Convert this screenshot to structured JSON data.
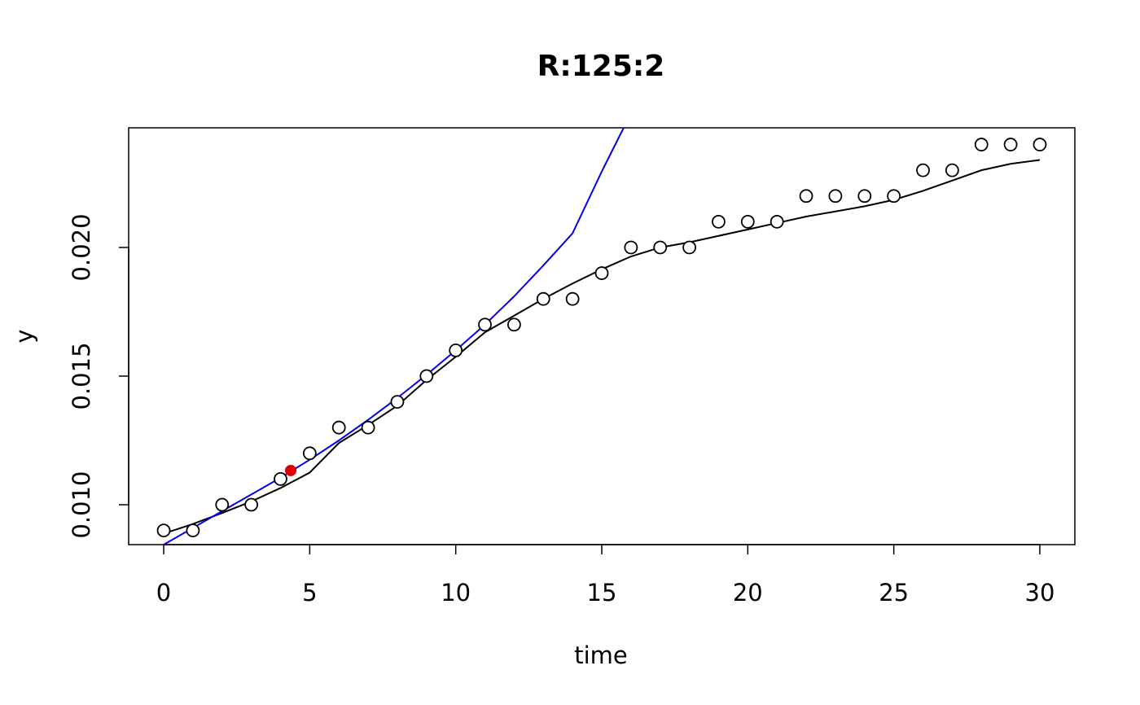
{
  "chart_data": {
    "type": "scatter",
    "title": "R:125:2",
    "xlabel": "time",
    "ylabel": "y",
    "xlim": [
      -1.2,
      31.2
    ],
    "ylim": [
      0.00845,
      0.02465
    ],
    "xticks": [
      0,
      5,
      10,
      15,
      20,
      25,
      30
    ],
    "yticks": [
      0.01,
      0.015,
      0.02
    ],
    "ytick_labels": [
      "0.010",
      "0.015",
      "0.020"
    ],
    "grid": false,
    "legend": "none",
    "series": [
      {
        "kind": "points",
        "color": "#000000",
        "x": [
          0,
          1,
          2,
          3,
          4,
          5,
          6,
          7,
          8,
          9,
          10,
          11,
          12,
          13,
          14,
          15,
          16,
          17,
          18,
          19,
          20,
          21,
          22,
          23,
          24,
          25,
          26,
          27,
          28,
          29,
          30
        ],
        "y": [
          0.009,
          0.009,
          0.01,
          0.01,
          0.011,
          0.012,
          0.013,
          0.013,
          0.014,
          0.015,
          0.016,
          0.017,
          0.017,
          0.018,
          0.018,
          0.019,
          0.02,
          0.02,
          0.02,
          0.021,
          0.021,
          0.021,
          0.022,
          0.022,
          0.022,
          0.022,
          0.023,
          0.023,
          0.024,
          0.024,
          0.024
        ]
      },
      {
        "kind": "line",
        "color": "#000000",
        "x": [
          0,
          1,
          2,
          3,
          4,
          5,
          6,
          7,
          8,
          9,
          10,
          11,
          12,
          13,
          14,
          15,
          16,
          17,
          18,
          19,
          20,
          21,
          22,
          23,
          24,
          25,
          26,
          27,
          28,
          29,
          30
        ],
        "y": [
          0.00888,
          0.00925,
          0.00968,
          0.01013,
          0.01065,
          0.01125,
          0.0124,
          0.0131,
          0.01385,
          0.01485,
          0.01575,
          0.0167,
          0.01735,
          0.018,
          0.0186,
          0.01915,
          0.01965,
          0.02,
          0.0202,
          0.02045,
          0.0207,
          0.02095,
          0.0212,
          0.0214,
          0.0216,
          0.02185,
          0.0222,
          0.0226,
          0.023,
          0.02325,
          0.0234
        ]
      },
      {
        "kind": "line",
        "color": "#0000ee",
        "x": [
          0,
          1,
          2,
          3,
          4,
          5,
          6,
          7,
          8,
          9,
          10,
          11,
          12,
          13,
          14,
          15,
          15.75
        ],
        "y": [
          0.00845,
          0.0091,
          0.00975,
          0.0104,
          0.01105,
          0.01175,
          0.0125,
          0.0133,
          0.01415,
          0.01505,
          0.016,
          0.017,
          0.0181,
          0.0193,
          0.02055,
          0.02295,
          0.02465
        ]
      },
      {
        "kind": "highlight-point",
        "color": "#dd0000",
        "x": [
          4.35
        ],
        "y": [
          0.01133
        ]
      }
    ]
  }
}
